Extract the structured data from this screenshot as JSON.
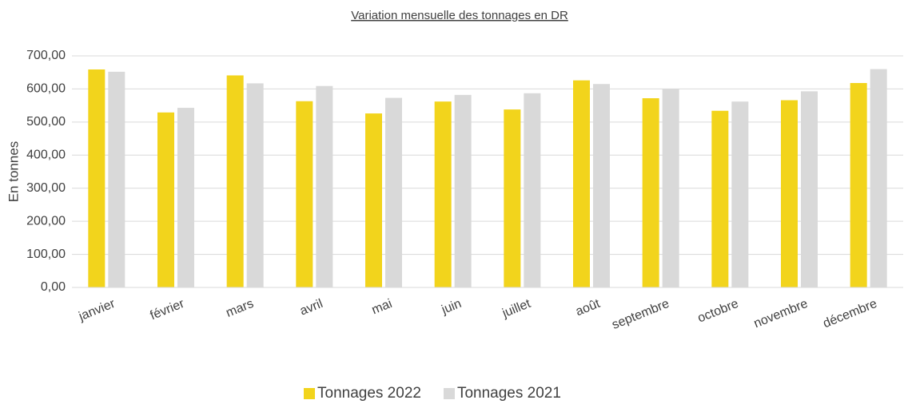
{
  "chart_data": {
    "type": "bar",
    "title": "Variation mensuelle des tonnages en DR",
    "y_label": "En tonnes",
    "categories": [
      "janvier",
      "février",
      "mars",
      "avril",
      "mai",
      "juin",
      "juillet",
      "août",
      "septembre",
      "octobre",
      "novembre",
      "décembre"
    ],
    "series": [
      {
        "name": "Tonnages 2022",
        "color": "#f2d41c",
        "values": [
          659,
          529,
          641,
          563,
          526,
          562,
          538,
          626,
          572,
          534,
          566,
          618
        ]
      },
      {
        "name": "Tonnages 2021",
        "color": "#d9d9d9",
        "values": [
          652,
          543,
          617,
          609,
          573,
          582,
          587,
          615,
          600,
          562,
          593,
          660
        ]
      }
    ],
    "ylim": [
      0,
      700
    ],
    "yticks": [
      {
        "value": 0,
        "label": "0,00"
      },
      {
        "value": 100,
        "label": "100,00"
      },
      {
        "value": 200,
        "label": "200,00"
      },
      {
        "value": 300,
        "label": "300,00"
      },
      {
        "value": 400,
        "label": "400,00"
      },
      {
        "value": 500,
        "label": "500,00"
      },
      {
        "value": 600,
        "label": "600,00"
      },
      {
        "value": 700,
        "label": "700,00"
      }
    ],
    "grid": true,
    "legend": "bottom"
  }
}
